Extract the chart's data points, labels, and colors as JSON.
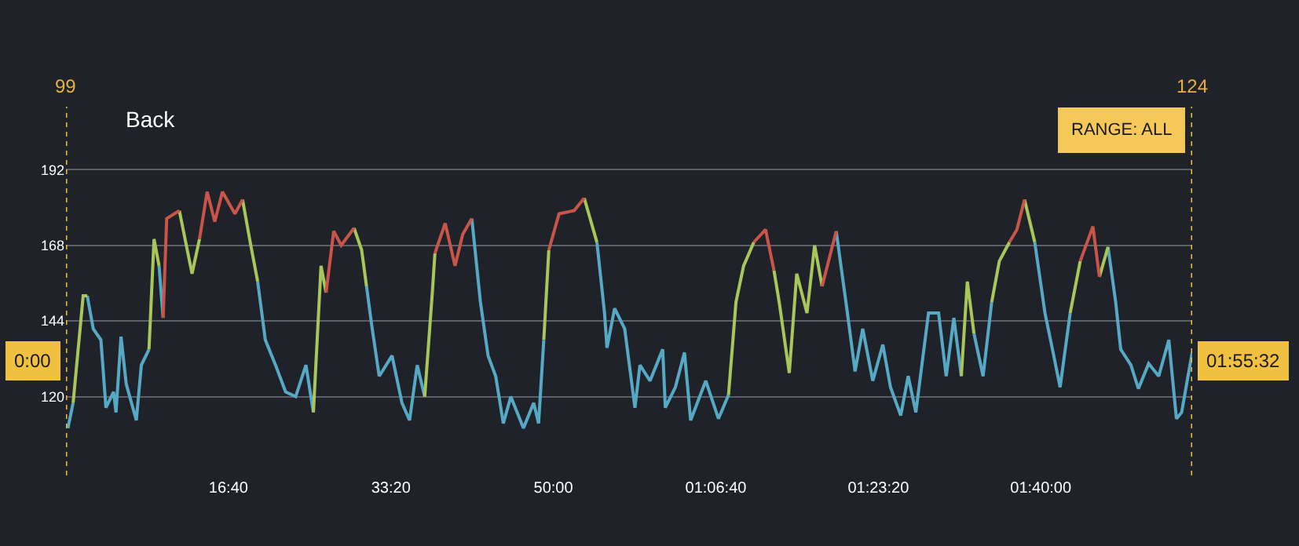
{
  "chart_data": {
    "type": "line",
    "x": [
      12,
      44,
      106,
      131,
      168,
      215,
      246,
      293,
      308,
      339,
      371,
      433,
      464,
      511,
      542,
      573,
      598,
      620,
      698,
      776,
      822,
      869,
      916,
      963,
      1040,
      1087,
      1134,
      1180,
      1227,
      1290,
      1352,
      1414,
      1477,
      1523,
      1570,
      1601,
      1648,
      1694,
      1773,
      1820,
      1850,
      1881,
      1928,
      2007,
      2068,
      2115,
      2162,
      2208,
      2255,
      2271,
      2334,
      2395,
      2442,
      2498,
      2551,
      2598,
      2645,
      2692,
      2738,
      2816,
      2879,
      2909,
      2941,
      2972,
      3035,
      3128,
      3190,
      3268,
      3315,
      3330,
      3377,
      3439,
      3502,
      3533,
      3595,
      3673,
      3689,
      3751,
      3807,
      3845,
      3938,
      4016,
      4078,
      4124,
      4171,
      4234,
      4306,
      4358,
      4390,
      4452,
      4498,
      4561,
      4608,
      4654,
      4741,
      4810,
      4857,
      4904,
      4966,
      5028,
      5075,
      5138,
      5184,
      5231,
      5309,
      5371,
      5418,
      5465,
      5511,
      5548,
      5589,
      5645,
      5698,
      5745,
      5807,
      5853,
      5900,
      5963,
      6026,
      6072,
      6119,
      6181,
      6243,
      6321,
      6361,
      6414,
      6461,
      6492,
      6555,
      6601,
      6664,
      6726,
      6788,
      6835,
      6867,
      6932
    ],
    "series": [
      {
        "color": "#56a9c4",
        "values": [
          110,
          118,
          null,
          152,
          141.5,
          138,
          116.5,
          121.5,
          115,
          139,
          124,
          112.5,
          130,
          135,
          null,
          161.5,
          145,
          null,
          null,
          null,
          null,
          null,
          null,
          null,
          null,
          null,
          null,
          156.5,
          138,
          130,
          121.5,
          120,
          130,
          115,
          null,
          null,
          null,
          null,
          null,
          null,
          155,
          143,
          126.5,
          133,
          118,
          112.5,
          130,
          120,
          null,
          null,
          null,
          null,
          null,
          176.5,
          150,
          133,
          126.5,
          111.5,
          120,
          110,
          118,
          111.5,
          138,
          null,
          null,
          null,
          null,
          169,
          146.5,
          135.5,
          148,
          141.5,
          116.5,
          130,
          125,
          135,
          116.5,
          123,
          134,
          112.5,
          125,
          113,
          120.5,
          null,
          null,
          null,
          null,
          null,
          null,
          null,
          null,
          null,
          null,
          null,
          172.5,
          146.5,
          128,
          141.5,
          125,
          136.5,
          123,
          114,
          126.5,
          115,
          146.5,
          146.5,
          126.5,
          145,
          126.5,
          null,
          140,
          126.5,
          150,
          null,
          null,
          null,
          null,
          169,
          146.5,
          135,
          123,
          146.5,
          null,
          null,
          null,
          167.5,
          150,
          135,
          130,
          122.5,
          130.5,
          126.5,
          138,
          113,
          115,
          134
        ]
      },
      {
        "color": "#a8c65a",
        "values": [
          null,
          118,
          152,
          152,
          null,
          null,
          null,
          null,
          null,
          null,
          null,
          null,
          null,
          135,
          170,
          161.5,
          null,
          null,
          179,
          159,
          170,
          null,
          null,
          null,
          null,
          182.5,
          169,
          156.5,
          null,
          null,
          null,
          null,
          null,
          115,
          161.5,
          153,
          null,
          null,
          173.5,
          166.5,
          155,
          null,
          null,
          null,
          null,
          null,
          null,
          120,
          153,
          165.5,
          null,
          null,
          null,
          null,
          null,
          null,
          null,
          null,
          null,
          null,
          null,
          null,
          138,
          166.5,
          null,
          null,
          183,
          169,
          null,
          null,
          null,
          null,
          null,
          null,
          null,
          null,
          null,
          null,
          null,
          null,
          null,
          null,
          120.5,
          150,
          161.5,
          169,
          null,
          160,
          150,
          127.5,
          159,
          146.5,
          168,
          155,
          null,
          null,
          null,
          null,
          null,
          null,
          null,
          null,
          null,
          null,
          null,
          null,
          null,
          null,
          126.5,
          156.5,
          140,
          null,
          150,
          163,
          169,
          null,
          182.5,
          169,
          null,
          null,
          null,
          146.5,
          163,
          null,
          158,
          167.5,
          null,
          null,
          null,
          null,
          null,
          null,
          null,
          null,
          null,
          null
        ]
      },
      {
        "color": "#c8544a",
        "values": [
          null,
          null,
          null,
          null,
          null,
          null,
          null,
          null,
          null,
          null,
          null,
          null,
          null,
          null,
          null,
          null,
          145,
          176.5,
          179,
          null,
          170,
          185,
          175.5,
          185,
          178,
          182.5,
          null,
          null,
          null,
          null,
          null,
          null,
          null,
          null,
          null,
          153,
          172.5,
          168,
          173.5,
          null,
          null,
          null,
          null,
          null,
          null,
          null,
          null,
          null,
          null,
          165.5,
          175,
          161.5,
          171.5,
          176.5,
          null,
          null,
          null,
          null,
          null,
          null,
          null,
          null,
          null,
          166.5,
          178,
          179,
          183,
          null,
          null,
          null,
          null,
          null,
          null,
          null,
          null,
          null,
          null,
          null,
          null,
          null,
          null,
          null,
          null,
          null,
          null,
          169,
          173,
          160,
          null,
          null,
          null,
          null,
          null,
          155,
          172.5,
          null,
          null,
          null,
          null,
          null,
          null,
          null,
          null,
          null,
          null,
          null,
          null,
          null,
          null,
          null,
          null,
          null,
          null,
          null,
          169,
          173,
          182.5,
          null,
          null,
          null,
          null,
          null,
          163,
          174,
          158,
          null,
          null,
          null,
          null,
          null,
          null,
          null,
          null,
          null,
          null,
          null
        ]
      }
    ],
    "xlim": [
      0,
      6932
    ],
    "xticks": [
      {
        "value": 1000,
        "label": "16:40"
      },
      {
        "value": 2000,
        "label": "33:20"
      },
      {
        "value": 3000,
        "label": "50:00"
      },
      {
        "value": 4000,
        "label": "01:06:40"
      },
      {
        "value": 5000,
        "label": "01:23:20"
      },
      {
        "value": 6000,
        "label": "01:40:00"
      }
    ],
    "ylim": [
      95,
      212
    ],
    "yticks": [
      120,
      144,
      168,
      192
    ],
    "grid": "y",
    "line_style": "solid",
    "ref_lines": [
      {
        "axis": "x",
        "value": 0,
        "color": "#f0c040",
        "line_style": "dotted"
      },
      {
        "axis": "x",
        "value": 6932,
        "color": "#f0c040",
        "line_style": "dotted"
      }
    ],
    "annotations": [
      "Back",
      "RANGE: ALL",
      "99",
      "124",
      "0:00",
      "01:55:32"
    ]
  }
}
